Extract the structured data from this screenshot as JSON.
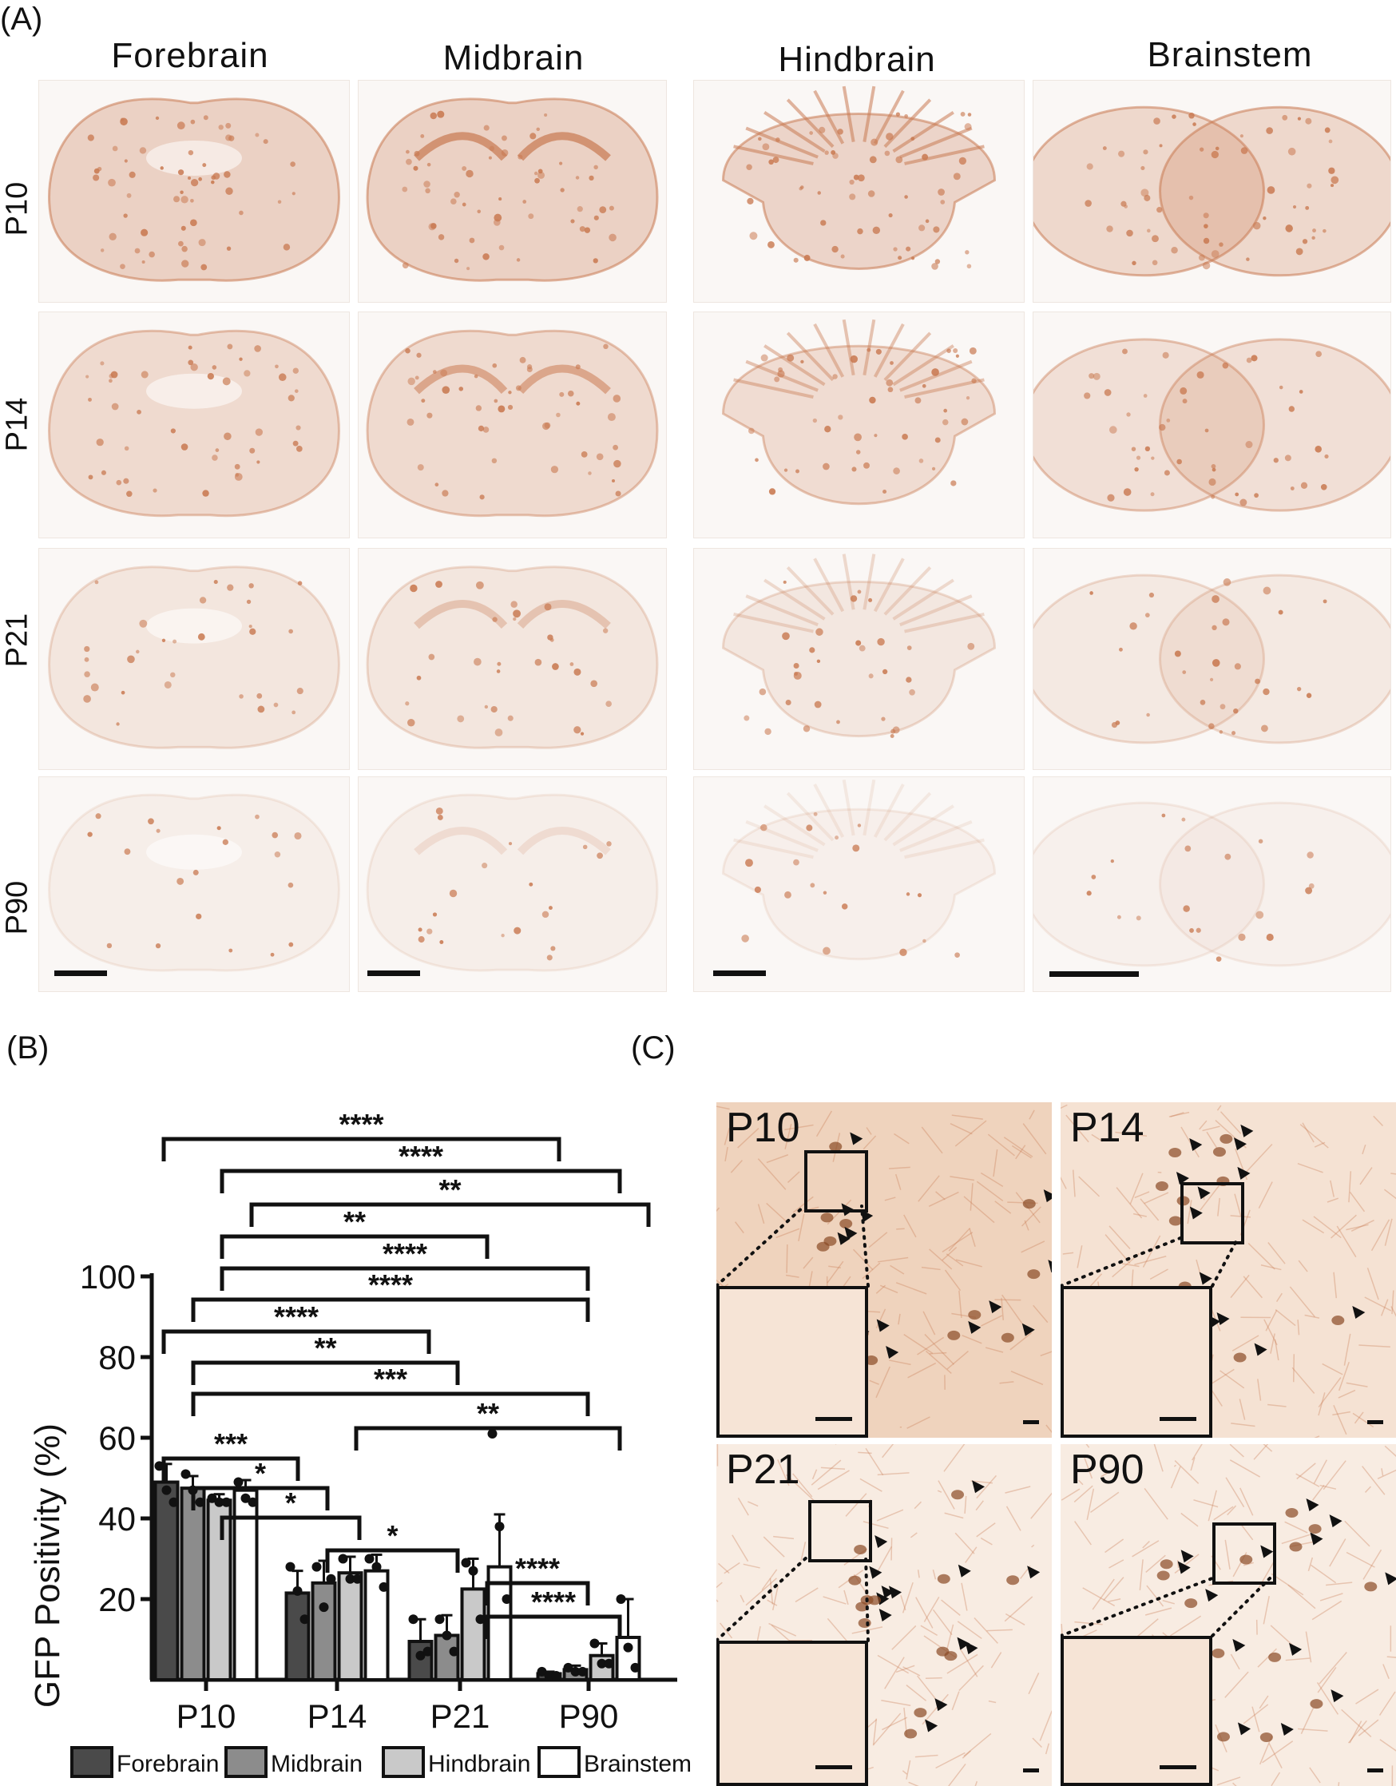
{
  "panels": {
    "A": {
      "label": "(A)",
      "columns": [
        "Forebrain",
        "Midbrain",
        "Hindbrain",
        "Brainstem"
      ],
      "rows": [
        "P10",
        "P14",
        "P21",
        "P90"
      ],
      "stain_color": "#c97a52"
    },
    "B": {
      "label": "(B)"
    },
    "C": {
      "label": "(C)",
      "tiles": [
        "P10",
        "P14",
        "P21",
        "P90"
      ]
    }
  },
  "chart_data": {
    "type": "bar",
    "categories": [
      "P10",
      "P14",
      "P21",
      "P90"
    ],
    "ylabel": "GFP Positivity (%)",
    "ylim": [
      0,
      100
    ],
    "yticks": [
      20,
      40,
      60,
      80,
      100
    ],
    "legend_position": "bottom",
    "series": [
      {
        "name": "Forebrain",
        "color": "#4a4a4a",
        "values": [
          49,
          21.5,
          9.5,
          1.5
        ],
        "errors": [
          4.5,
          5.5,
          5.5,
          0.5
        ],
        "points": [
          [
            53,
            47,
            44
          ],
          [
            28,
            22,
            15
          ],
          [
            15,
            6,
            7
          ],
          [
            2,
            1,
            1
          ]
        ]
      },
      {
        "name": "Midbrain",
        "color": "#8c8c8c",
        "values": [
          47.5,
          24,
          11,
          2.5
        ],
        "errors": [
          3,
          5.5,
          5,
          1
        ],
        "points": [
          [
            51,
            47,
            44
          ],
          [
            28,
            18,
            25
          ],
          [
            15,
            11,
            7
          ],
          [
            3,
            2,
            2
          ]
        ]
      },
      {
        "name": "Hindbrain",
        "color": "#c9c9c9",
        "values": [
          44.5,
          26.5,
          22.5,
          6
        ],
        "errors": [
          1.5,
          4,
          7.5,
          3
        ],
        "points": [
          [
            45,
            44,
            44
          ],
          [
            30,
            25,
            25
          ],
          [
            29,
            27,
            15
          ],
          [
            9,
            4,
            4
          ]
        ]
      },
      {
        "name": "Brainstem",
        "color": "#ffffff",
        "values": [
          47,
          27,
          28,
          10.5
        ],
        "errors": [
          2.5,
          4,
          13,
          9.5
        ],
        "points": [
          [
            49,
            45,
            44
          ],
          [
            30,
            28,
            23
          ],
          [
            61,
            38,
            20
          ],
          [
            20,
            8,
            3
          ]
        ]
      }
    ],
    "significance": [
      {
        "label": "****"
      },
      {
        "label": "****"
      },
      {
        "label": "**"
      },
      {
        "label": "**"
      },
      {
        "label": "****"
      },
      {
        "label": "****"
      },
      {
        "label": "****"
      },
      {
        "label": "**"
      },
      {
        "label": "***"
      },
      {
        "label": "**"
      },
      {
        "label": "***"
      },
      {
        "label": "*"
      },
      {
        "label": "*"
      },
      {
        "label": "*"
      }
    ]
  }
}
